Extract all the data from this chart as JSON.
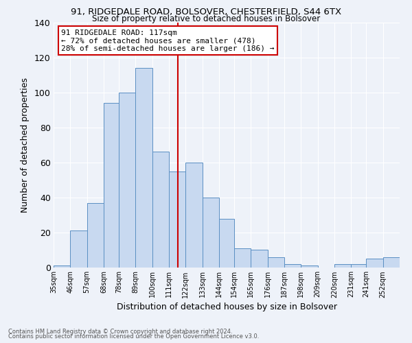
{
  "title1": "91, RIDGEDALE ROAD, BOLSOVER, CHESTERFIELD, S44 6TX",
  "title2": "Size of property relative to detached houses in Bolsover",
  "xlabel": "Distribution of detached houses by size in Bolsover",
  "ylabel": "Number of detached properties",
  "footnote1": "Contains HM Land Registry data © Crown copyright and database right 2024.",
  "footnote2": "Contains public sector information licensed under the Open Government Licence v3.0.",
  "annotation_line1": "91 RIDGEDALE ROAD: 117sqm",
  "annotation_line2": "← 72% of detached houses are smaller (478)",
  "annotation_line3": "28% of semi-detached houses are larger (186) →",
  "vline_x": 117,
  "bar_edges": [
    35,
    46,
    57,
    68,
    78,
    89,
    100,
    111,
    122,
    133,
    144,
    154,
    165,
    176,
    187,
    198,
    209,
    220,
    231,
    241,
    252
  ],
  "bar_heights": [
    1,
    21,
    37,
    94,
    100,
    114,
    66,
    55,
    60,
    40,
    28,
    11,
    10,
    6,
    2,
    1,
    0,
    2,
    2,
    5,
    6
  ],
  "bar_color": "#c8d9f0",
  "bar_edge_color": "#5a8fc3",
  "vline_color": "#cc0000",
  "annotation_box_edge_color": "#cc0000",
  "background_color": "#eef2f9",
  "tick_labels": [
    "35sqm",
    "46sqm",
    "57sqm",
    "68sqm",
    "78sqm",
    "89sqm",
    "100sqm",
    "111sqm",
    "122sqm",
    "133sqm",
    "144sqm",
    "154sqm",
    "165sqm",
    "176sqm",
    "187sqm",
    "198sqm",
    "209sqm",
    "220sqm",
    "231sqm",
    "241sqm",
    "252sqm"
  ],
  "ylim": [
    0,
    140
  ],
  "yticks": [
    0,
    20,
    40,
    60,
    80,
    100,
    120,
    140
  ]
}
